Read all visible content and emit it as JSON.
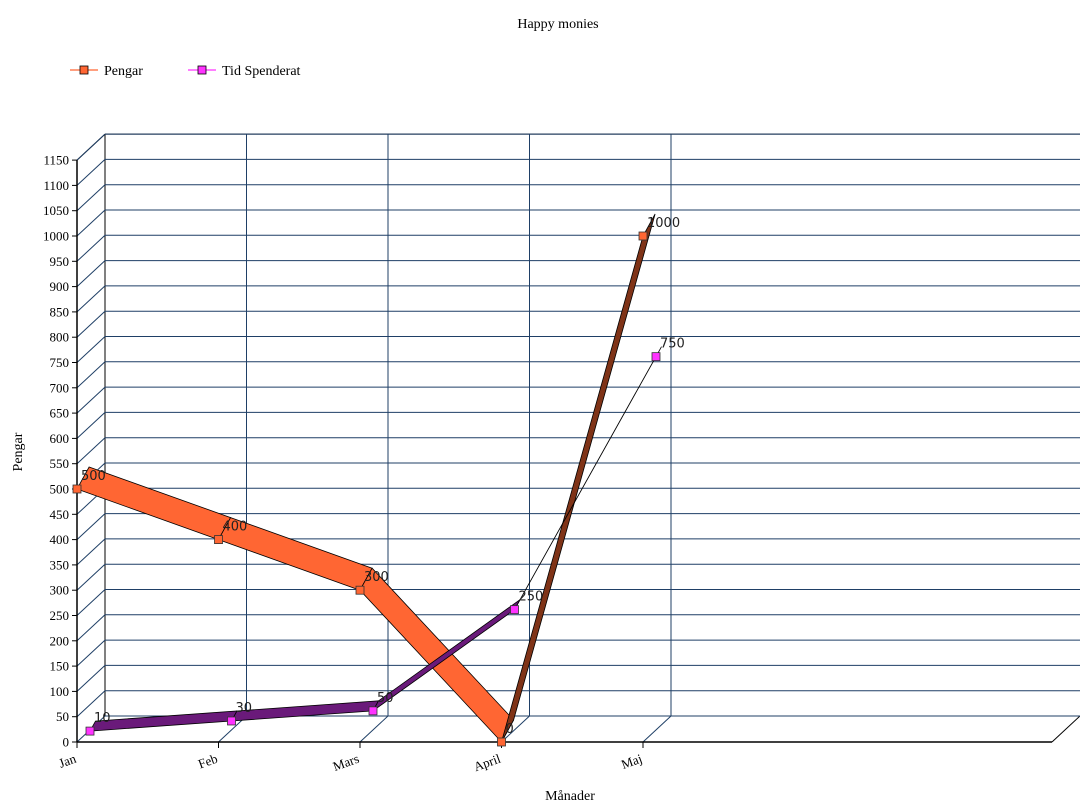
{
  "chart_data": {
    "type": "line",
    "title": "Happy monies",
    "xlabel": "Månader",
    "ylabel": "Pengar",
    "categories": [
      "Jan",
      "Feb",
      "Mars",
      "April",
      "Maj"
    ],
    "ylim": [
      0,
      1150
    ],
    "ytick_step": 50,
    "grid": true,
    "legend_position": "top-left",
    "series": [
      {
        "name": "Pengar",
        "values": [
          500,
          400,
          300,
          0,
          1000
        ],
        "color": "#ff6633",
        "shadow_color": "#7f3317"
      },
      {
        "name": "Tid Spenderat",
        "values": [
          10,
          30,
          50,
          250,
          750
        ],
        "color": "#ff33ff",
        "shadow_color": "#6a1a7a"
      }
    ]
  }
}
